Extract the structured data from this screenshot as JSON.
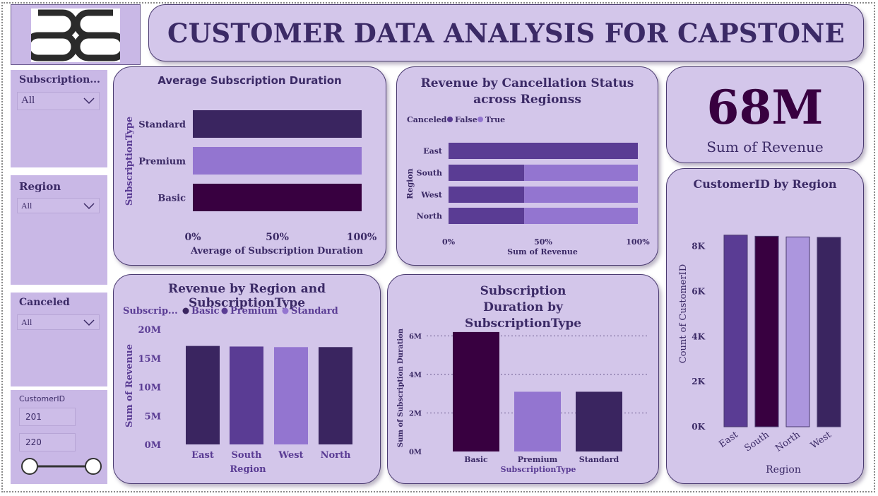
{
  "header": {
    "title": "CUSTOMER DATA ANALYSIS FOR CAPSTONE"
  },
  "logo": {
    "icon": "bb-logo-icon"
  },
  "slicers": {
    "subscription": {
      "title": "Subscription...",
      "value": "All"
    },
    "region": {
      "title": "Region",
      "value": "All"
    },
    "canceled": {
      "title": "Canceled",
      "value": "All"
    },
    "customer_id": {
      "title": "CustomerID",
      "min": "201",
      "max": "220"
    }
  },
  "kpi": {
    "value": "68M",
    "label": "Sum of Revenue"
  },
  "colors": {
    "dark": "#3a2560",
    "mid": "#5a3c94",
    "light": "#9375d0",
    "lighter": "#ac96de",
    "deep": "#380040"
  },
  "chart_data": [
    {
      "type": "bar",
      "orientation": "horizontal",
      "title": "Average Subscription Duration",
      "xlabel": "Average of Subscription Duration",
      "ylabel": "SubscriptionType",
      "categories": [
        "Standard",
        "Premium",
        "Basic"
      ],
      "values": [
        100,
        100,
        100
      ],
      "x_ticks": [
        "0%",
        "50%",
        "100%"
      ],
      "xlim": [
        0,
        100
      ]
    },
    {
      "type": "bar",
      "orientation": "horizontal",
      "stacked": "100%",
      "title": "Revenue by Cancellation Status across Regionss",
      "xlabel": "Sum of Revenue",
      "ylabel": "Region",
      "legend_title": "Canceled",
      "legend_position": "top-left",
      "categories": [
        "East",
        "South",
        "West",
        "North"
      ],
      "series": [
        {
          "name": "False",
          "values": [
            100,
            40,
            40,
            40
          ]
        },
        {
          "name": "True",
          "values": [
            0,
            60,
            60,
            60
          ]
        }
      ],
      "x_ticks": [
        "0%",
        "50%",
        "100%"
      ],
      "xlim": [
        0,
        100
      ]
    },
    {
      "type": "bar",
      "title": "Revenue by Region and SubscriptionType",
      "xlabel": "Region",
      "ylabel": "Sum of Revenue",
      "legend_title": "Subscrip...",
      "legend_position": "top-left",
      "legend": [
        "Basic",
        "Premium",
        "Standard"
      ],
      "categories": [
        "East",
        "South",
        "West",
        "North"
      ],
      "values": [
        17.1,
        17.0,
        16.9,
        16.9
      ],
      "y_ticks": [
        "0M",
        "5M",
        "10M",
        "15M",
        "20M"
      ],
      "ylim": [
        0,
        20
      ]
    },
    {
      "type": "bar",
      "title": "Subscription Duration by SubscriptionType",
      "xlabel": "SubscriptionType",
      "ylabel": "Sum of Subscription Duration",
      "categories": [
        "Basic",
        "Premium",
        "Standard"
      ],
      "values": [
        6.2,
        3.1,
        3.1
      ],
      "y_ticks": [
        "0M",
        "2M",
        "4M",
        "6M"
      ],
      "ylim": [
        0,
        6.6
      ],
      "grid": true
    },
    {
      "type": "bar",
      "title": "CustomerID by Region",
      "xlabel": "Region",
      "ylabel": "Count of CustomerID",
      "categories": [
        "East",
        "South",
        "North",
        "West"
      ],
      "values": [
        8500,
        8450,
        8420,
        8400
      ],
      "y_ticks": [
        "0K",
        "2K",
        "4K",
        "6K",
        "8K"
      ],
      "ylim": [
        0,
        8900
      ]
    }
  ]
}
